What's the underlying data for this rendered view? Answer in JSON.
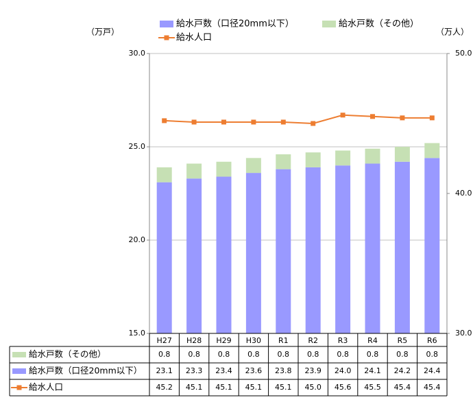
{
  "chart_data": {
    "type": "bar-line-table",
    "y_unit": "（万戸）",
    "y2_unit": "（万人）",
    "categories": [
      "H27",
      "H28",
      "H29",
      "H30",
      "R1",
      "R2",
      "R3",
      "R4",
      "R5",
      "R6"
    ],
    "series": [
      {
        "name": "給水戸数（口径20mm以下）",
        "color": "#9999ff",
        "type": "bar",
        "values": [
          23.1,
          23.3,
          23.4,
          23.6,
          23.8,
          23.9,
          24.0,
          24.1,
          24.2,
          24.4
        ],
        "value_labels": [
          "23.1",
          "23.3",
          "23.4",
          "23.6",
          "23.8",
          "23.9",
          "24.0",
          "24.1",
          "24.2",
          "24.4"
        ]
      },
      {
        "name": "給水戸数（その他）",
        "color": "#c6e0b4",
        "type": "bar",
        "values": [
          0.8,
          0.8,
          0.8,
          0.8,
          0.8,
          0.8,
          0.8,
          0.8,
          0.8,
          0.8
        ],
        "value_labels": [
          "0.8",
          "0.8",
          "0.8",
          "0.8",
          "0.8",
          "0.8",
          "0.8",
          "0.8",
          "0.8",
          "0.8"
        ]
      },
      {
        "name": "給水人口",
        "color": "#ed7d31",
        "type": "line",
        "axis": "y2",
        "values": [
          45.2,
          45.1,
          45.1,
          45.1,
          45.1,
          45.0,
          45.6,
          45.5,
          45.4,
          45.4
        ],
        "value_labels": [
          "45.2",
          "45.1",
          "45.1",
          "45.1",
          "45.1",
          "45.0",
          "45.6",
          "45.5",
          "45.4",
          "45.4"
        ]
      }
    ],
    "ylim": [
      15,
      30
    ],
    "yticks": [
      {
        "value": 15,
        "label": "15.0"
      },
      {
        "value": 20,
        "label": "20.0"
      },
      {
        "value": 25,
        "label": "25.0"
      },
      {
        "value": 30,
        "label": "30.0"
      }
    ],
    "y2lim": [
      30,
      50
    ],
    "y2ticks": [
      {
        "value": 30,
        "label": "30.0"
      },
      {
        "value": 40,
        "label": "40.0"
      },
      {
        "value": 50,
        "label": "50.0"
      }
    ],
    "grid": true
  }
}
